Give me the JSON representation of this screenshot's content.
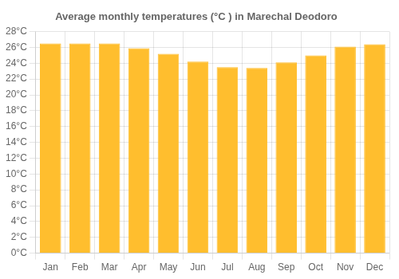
{
  "chart_data": {
    "type": "bar",
    "title": "Average monthly temperatures (°C ) in Marechal Deodoro",
    "categories": [
      "Jan",
      "Feb",
      "Mar",
      "Apr",
      "May",
      "Jun",
      "Jul",
      "Aug",
      "Sep",
      "Oct",
      "Nov",
      "Dec"
    ],
    "values": [
      26.5,
      26.5,
      26.5,
      25.9,
      25.2,
      24.2,
      23.5,
      23.4,
      24.1,
      25.0,
      26.1,
      26.4
    ],
    "color": "#FFBE2E",
    "ylim": [
      0,
      28
    ],
    "yticks": [
      {
        "value": 0,
        "label": "0°C"
      },
      {
        "value": 2,
        "label": "2°C"
      },
      {
        "value": 4,
        "label": "4°C"
      },
      {
        "value": 6,
        "label": "6°C"
      },
      {
        "value": 8,
        "label": "8°C"
      },
      {
        "value": 10,
        "label": "10°C"
      },
      {
        "value": 12,
        "label": "12°C"
      },
      {
        "value": 14,
        "label": "14°C"
      },
      {
        "value": 16,
        "label": "16°C"
      },
      {
        "value": 18,
        "label": "18°C"
      },
      {
        "value": 20,
        "label": "20°C"
      },
      {
        "value": 22,
        "label": "22°C"
      },
      {
        "value": 24,
        "label": "24°C"
      },
      {
        "value": 26,
        "label": "26°C"
      },
      {
        "value": 28,
        "label": "28°C"
      }
    ],
    "grid": true
  }
}
